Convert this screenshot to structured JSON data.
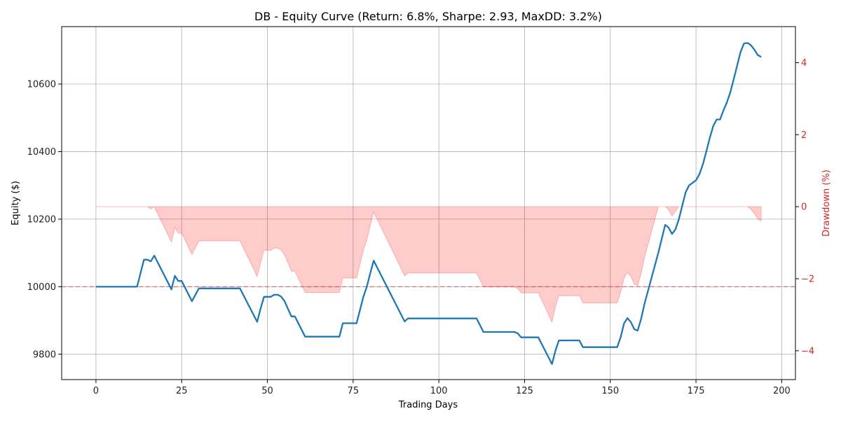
{
  "chart_data": {
    "type": "line",
    "title": "DB - Equity Curve (Return: 6.8%, Sharpe: 2.93, MaxDD: 3.2%)",
    "xlabel": "Trading Days",
    "ylabel": "Equity ($)",
    "y2label": "Drawdown (%)",
    "xlim": [
      -10,
      204
    ],
    "ylim": [
      9725,
      10770
    ],
    "y2lim": [
      -4.8,
      5.0
    ],
    "x_ticks": [
      0,
      25,
      50,
      75,
      100,
      125,
      150,
      175,
      200
    ],
    "y_ticks": [
      9800,
      10000,
      10200,
      10400,
      10600
    ],
    "y2_ticks": [
      -4,
      -2,
      0,
      2,
      4
    ],
    "reference_line": 10000,
    "grid": true,
    "colors": {
      "equity": "#1f77b4",
      "drawdown": "#ff0000",
      "reference": "#d62728",
      "right_axis": "#d62728"
    },
    "series": [
      {
        "kind": "equity",
        "axis": "left",
        "points": [
          [
            0,
            10000
          ],
          [
            12,
            10000
          ],
          [
            14,
            10080
          ],
          [
            15,
            10080
          ],
          [
            16,
            10075
          ],
          [
            17,
            10092
          ],
          [
            22,
            9992
          ],
          [
            23,
            10032
          ],
          [
            24,
            10017
          ],
          [
            25,
            10017
          ],
          [
            28,
            9957
          ],
          [
            30,
            9995
          ],
          [
            42,
            9995
          ],
          [
            47,
            9896
          ],
          [
            48,
            9935
          ],
          [
            49,
            9970
          ],
          [
            51,
            9970
          ],
          [
            52,
            9976
          ],
          [
            53,
            9976
          ],
          [
            54,
            9971
          ],
          [
            55,
            9957
          ],
          [
            57,
            9912
          ],
          [
            58,
            9912
          ],
          [
            61,
            9852
          ],
          [
            71,
            9852
          ],
          [
            72,
            9892
          ],
          [
            76,
            9892
          ],
          [
            78,
            9970
          ],
          [
            79,
            10000
          ],
          [
            80,
            10040
          ],
          [
            81,
            10077
          ],
          [
            90,
            9897
          ],
          [
            91,
            9906
          ],
          [
            111,
            9906
          ],
          [
            113,
            9866
          ],
          [
            122,
            9866
          ],
          [
            123,
            9862
          ],
          [
            124,
            9850
          ],
          [
            129,
            9850
          ],
          [
            133,
            9771
          ],
          [
            134,
            9810
          ],
          [
            135,
            9841
          ],
          [
            141,
            9841
          ],
          [
            142,
            9821
          ],
          [
            152,
            9821
          ],
          [
            153,
            9850
          ],
          [
            154,
            9891
          ],
          [
            155,
            9907
          ],
          [
            156,
            9895
          ],
          [
            157,
            9874
          ],
          [
            158,
            9870
          ],
          [
            159,
            9905
          ],
          [
            160,
            9950
          ],
          [
            164,
            10100
          ],
          [
            166,
            10183
          ],
          [
            167,
            10175
          ],
          [
            168,
            10156
          ],
          [
            169,
            10170
          ],
          [
            170,
            10200
          ],
          [
            171,
            10240
          ],
          [
            172,
            10280
          ],
          [
            173,
            10300
          ],
          [
            175,
            10315
          ],
          [
            176,
            10333
          ],
          [
            177,
            10362
          ],
          [
            178,
            10400
          ],
          [
            179,
            10440
          ],
          [
            180,
            10475
          ],
          [
            181,
            10495
          ],
          [
            182,
            10495
          ],
          [
            183,
            10522
          ],
          [
            184,
            10545
          ],
          [
            185,
            10575
          ],
          [
            186,
            10614
          ],
          [
            188,
            10695
          ],
          [
            189,
            10720
          ],
          [
            190,
            10722
          ],
          [
            191,
            10715
          ],
          [
            192,
            10702
          ],
          [
            193,
            10686
          ],
          [
            194,
            10680
          ]
        ]
      },
      {
        "kind": "drawdown",
        "axis": "right",
        "points": [
          [
            0,
            0
          ],
          [
            14,
            0
          ],
          [
            15,
            0
          ],
          [
            16,
            -0.06
          ],
          [
            17,
            0
          ],
          [
            22,
            -0.98
          ],
          [
            23,
            -0.58
          ],
          [
            24,
            -0.73
          ],
          [
            25,
            -0.73
          ],
          [
            28,
            -1.33
          ],
          [
            30,
            -0.95
          ],
          [
            42,
            -0.95
          ],
          [
            47,
            -1.94
          ],
          [
            48,
            -1.55
          ],
          [
            49,
            -1.21
          ],
          [
            51,
            -1.21
          ],
          [
            52,
            -1.15
          ],
          [
            53,
            -1.15
          ],
          [
            54,
            -1.2
          ],
          [
            55,
            -1.34
          ],
          [
            57,
            -1.79
          ],
          [
            58,
            -1.79
          ],
          [
            61,
            -2.38
          ],
          [
            71,
            -2.38
          ],
          [
            72,
            -1.98
          ],
          [
            76,
            -1.98
          ],
          [
            78,
            -1.21
          ],
          [
            79,
            -0.92
          ],
          [
            80,
            -0.52
          ],
          [
            81,
            -0.15
          ],
          [
            90,
            -1.92
          ],
          [
            91,
            -1.84
          ],
          [
            111,
            -1.84
          ],
          [
            113,
            -2.23
          ],
          [
            122,
            -2.23
          ],
          [
            123,
            -2.27
          ],
          [
            124,
            -2.39
          ],
          [
            129,
            -2.39
          ],
          [
            133,
            -3.2
          ],
          [
            134,
            -2.78
          ],
          [
            135,
            -2.47
          ],
          [
            141,
            -2.47
          ],
          [
            142,
            -2.67
          ],
          [
            152,
            -2.67
          ],
          [
            153,
            -2.38
          ],
          [
            154,
            -1.98
          ],
          [
            155,
            -1.82
          ],
          [
            156,
            -1.94
          ],
          [
            157,
            -2.15
          ],
          [
            158,
            -2.19
          ],
          [
            159,
            -1.85
          ],
          [
            160,
            -1.4
          ],
          [
            164,
            0
          ],
          [
            166,
            0
          ],
          [
            167,
            -0.08
          ],
          [
            168,
            -0.26
          ],
          [
            169,
            -0.12
          ],
          [
            170,
            0
          ],
          [
            189,
            0
          ],
          [
            190,
            0
          ],
          [
            191,
            -0.07
          ],
          [
            192,
            -0.19
          ],
          [
            193,
            -0.34
          ],
          [
            194,
            -0.39
          ]
        ]
      }
    ]
  }
}
